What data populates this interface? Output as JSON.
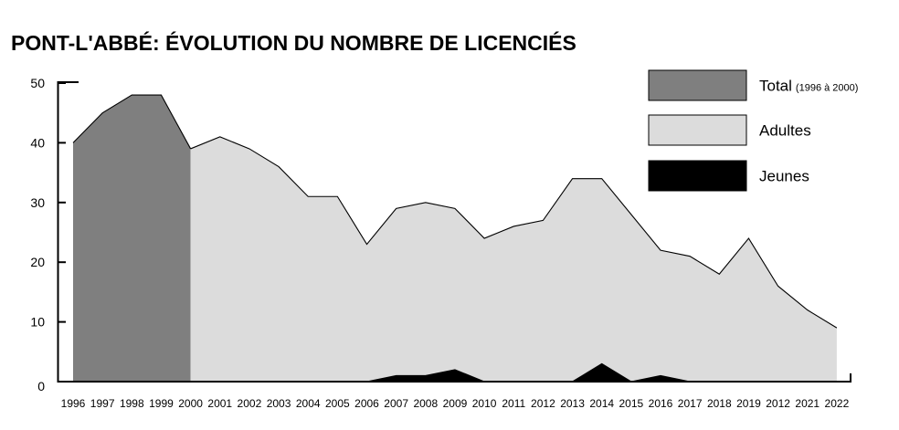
{
  "chart_data": {
    "type": "area",
    "title": "PONT-L'ABBÉ: ÉVOLUTION DU NOMBRE DE LICENCIÉS",
    "xlabel": "",
    "ylabel": "",
    "ylim": [
      0,
      50
    ],
    "yticks": [
      "0",
      "10",
      "20",
      "30",
      "40",
      "50"
    ],
    "grid": false,
    "legend_position": "top-right",
    "x_labels": [
      "1996",
      "1997",
      "1998",
      "1999",
      "2000",
      "2001",
      "2002",
      "2003",
      "2004",
      "2005",
      "2006",
      "2007",
      "2008",
      "2009",
      "2010",
      "2011",
      "2012",
      "2013",
      "2014",
      "2015",
      "2016",
      "2017",
      "2018",
      "2019",
      "2012",
      "2021",
      "2022"
    ],
    "series": [
      {
        "name": "Total",
        "note": "(1996 à 2000)",
        "color": "#7f7f7f",
        "values": [
          40,
          45,
          48,
          48,
          39,
          null,
          null,
          null,
          null,
          null,
          null,
          null,
          null,
          null,
          null,
          null,
          null,
          null,
          null,
          null,
          null,
          null,
          null,
          null,
          null,
          null,
          null
        ]
      },
      {
        "name": "Adultes",
        "color": "#dcdcdc",
        "values": [
          null,
          null,
          null,
          null,
          39,
          41,
          39,
          36,
          31,
          31,
          23,
          29,
          30,
          29,
          24,
          26,
          27,
          34,
          34,
          28,
          22,
          21,
          18,
          24,
          16,
          12,
          9
        ]
      },
      {
        "name": "Jeunes",
        "color": "#000000",
        "values": [
          null,
          null,
          null,
          null,
          null,
          null,
          null,
          null,
          null,
          null,
          0,
          1,
          1,
          2,
          0,
          0,
          0,
          0,
          3,
          0,
          1,
          0,
          0,
          0,
          0,
          0,
          0
        ]
      }
    ]
  }
}
